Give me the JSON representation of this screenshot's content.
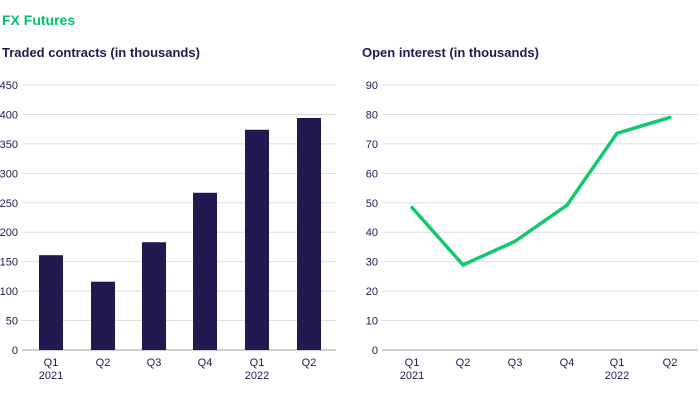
{
  "header": {
    "title": "FX Futures"
  },
  "colors": {
    "title": "#00c46a",
    "bar": "#211a50",
    "line": "#14c86e",
    "text": "#1f1a4f"
  },
  "chart_data": [
    {
      "type": "bar",
      "title": "Traded contracts (in thousands)",
      "categories": [
        [
          "Q1",
          "2021"
        ],
        [
          "Q2",
          ""
        ],
        [
          "Q3",
          ""
        ],
        [
          "Q4",
          ""
        ],
        [
          "Q1",
          "2022"
        ],
        [
          "Q2",
          ""
        ]
      ],
      "values": [
        161,
        116,
        183,
        267,
        374,
        394
      ],
      "yticks": [
        0,
        50,
        100,
        150,
        200,
        250,
        300,
        350,
        400,
        450
      ],
      "ylim": [
        0,
        450
      ],
      "grid": true,
      "xlabel": "",
      "ylabel": ""
    },
    {
      "type": "line",
      "title": "Open interest (in thousands)",
      "categories": [
        [
          "Q1",
          "2021"
        ],
        [
          "Q2",
          ""
        ],
        [
          "Q3",
          ""
        ],
        [
          "Q4",
          ""
        ],
        [
          "Q1",
          "2022"
        ],
        [
          "Q2",
          ""
        ]
      ],
      "values": [
        48.4,
        28.9,
        36.9,
        49.2,
        73.6,
        79
      ],
      "yticks": [
        0,
        10,
        20,
        30,
        40,
        50,
        60,
        70,
        80,
        90
      ],
      "ylim": [
        0,
        90
      ],
      "grid": true,
      "xlabel": "",
      "ylabel": ""
    }
  ]
}
